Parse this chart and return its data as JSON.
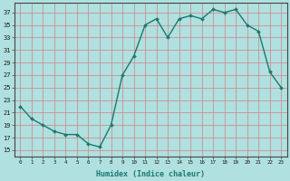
{
  "x": [
    0,
    1,
    2,
    3,
    4,
    5,
    6,
    7,
    8,
    9,
    10,
    11,
    12,
    13,
    14,
    15,
    16,
    17,
    18,
    19,
    20,
    21,
    22,
    23
  ],
  "y": [
    22,
    20,
    19,
    18,
    17.5,
    17.5,
    16,
    15.5,
    19,
    27,
    30,
    35,
    36,
    33,
    36,
    36.5,
    36,
    37.5,
    37,
    37.5,
    35,
    34,
    27.5,
    25
  ],
  "line_color": "#1a7a6e",
  "marker": "D",
  "marker_size": 2.0,
  "bg_color": "#b0e0e0",
  "plot_bg_color": "#b0e0e0",
  "grid_color": "#d08080",
  "xlabel": "Humidex (Indice chaleur)",
  "ylabel_ticks": [
    15,
    17,
    19,
    21,
    23,
    25,
    27,
    29,
    31,
    33,
    35,
    37
  ],
  "xlim": [
    -0.5,
    23.5
  ],
  "ylim": [
    14,
    38.5
  ],
  "xtick_labels": [
    "0",
    "1",
    "2",
    "3",
    "4",
    "5",
    "6",
    "7",
    "8",
    "9",
    "10",
    "11",
    "12",
    "13",
    "14",
    "15",
    "16",
    "17",
    "18",
    "19",
    "20",
    "21",
    "22",
    "23"
  ]
}
